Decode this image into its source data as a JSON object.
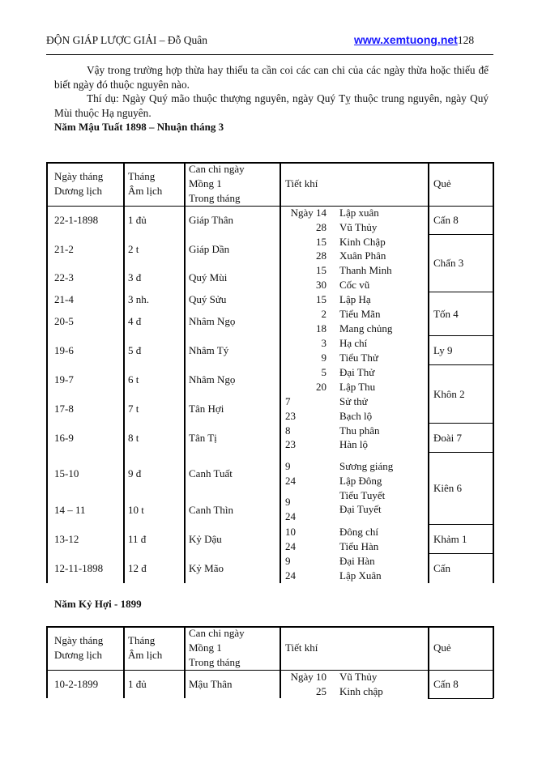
{
  "header": {
    "title": "ĐỘN GIÁP LƯỢC GIẢI – Đỗ Quân",
    "website": "www.xemtuong.net",
    "page_number": "128"
  },
  "paragraphs": [
    "Vậy trong trường hợp thừa hay thiếu ta cần coi các can chi của các ngày thừa hoặc thiếu để biết ngày đó thuộc nguyên nào.",
    "Thí dụ: Ngày Quý mão thuộc thượng nguyên, ngày Quý Tỵ thuộc trung nguyên, ngày Quý Mùi thuộc Hạ nguyên."
  ],
  "table1": {
    "heading": "Năm Mậu Tuất 1898 – Nhuận tháng 3",
    "headers": [
      "Ngày tháng\nDương lịch",
      "Tháng\nÂm lịch",
      "Can chi ngày\nMồng 1\nTrong tháng",
      "Tiết khí",
      "Quẻ"
    ],
    "rows": [
      [
        "22-1-1898",
        "1 đủ",
        "Giáp Thân"
      ],
      [
        "21-2",
        "2 t",
        "Giáp Dần"
      ],
      [
        "22-3",
        "3 đ",
        "Quý Mùi"
      ],
      [
        "21-4",
        "3 nh.",
        "Quý Sửu"
      ],
      [
        "20-5",
        "4 đ",
        "Nhâm Ngọ"
      ],
      [
        "19-6",
        "5  đ",
        "Nhâm Tý"
      ],
      [
        "19-7",
        "6 t",
        "Nhâm Ngọ"
      ],
      [
        "17-8",
        "7 t",
        "Tân Hợi"
      ],
      [
        "16-9",
        "8 t",
        "Tân Tị"
      ],
      [
        "15-10",
        "9 đ",
        "Canh Tuất"
      ],
      [
        "14 – 11",
        "10 t",
        "Canh Thìn"
      ],
      [
        "13-12",
        "11 đ",
        "Kỷ Dậu"
      ],
      [
        "12-11-1898",
        "12 đ",
        "Kỷ Mão"
      ]
    ],
    "tiet_khi_days": [
      "Ngày 14",
      "28",
      "15",
      "28",
      "15",
      "30",
      "15",
      "2",
      "18",
      "3",
      "9",
      "5",
      "20",
      "7",
      "23",
      "8",
      "23",
      "9",
      "24",
      "9",
      "24",
      "10",
      "24",
      "9",
      "24"
    ],
    "tiet_khi_names": [
      "Lập xuân",
      "Vũ Thủy",
      "Kinh Chập",
      "Xuân Phân",
      "Thanh Minh",
      "Cốc vũ",
      "Lập Hạ",
      "Tiểu Mãn",
      "Mang chủng",
      "Hạ chí",
      "Tiểu Thử",
      "Đại Thử",
      "Lập Thu",
      "Sử thử",
      "Bạch lộ",
      "Thu phân",
      "Hàn lộ",
      "Sương giáng",
      "Lập Đông",
      "Tiểu Tuyết",
      "Đại Tuyết",
      "Đông chí",
      "Tiểu Hàn",
      "Đại Hàn",
      "Lập Xuân"
    ],
    "que": [
      "Cấn 8",
      "Chấn 3",
      "Tốn 4",
      "Ly 9",
      "Khôn 2",
      "Đoài 7",
      "Kiên 6",
      "Khảm 1",
      "Cấn"
    ]
  },
  "table2": {
    "heading": "Năm Kỷ Hợi  - 1899",
    "headers": [
      "Ngày tháng\nDương lịch",
      "Tháng\nÂm lịch",
      "Can chi ngày\nMồng 1\nTrong tháng",
      "Tiết khí",
      "Quẻ"
    ],
    "rows": [
      [
        "10-2-1899",
        "1 đủ",
        "Mậu Thân"
      ]
    ],
    "tiet_khi_days": [
      "Ngày 10",
      "25"
    ],
    "tiet_khi_names": [
      "Vũ Thủy",
      "Kinh chập"
    ],
    "que": [
      "Cấn 8"
    ]
  }
}
